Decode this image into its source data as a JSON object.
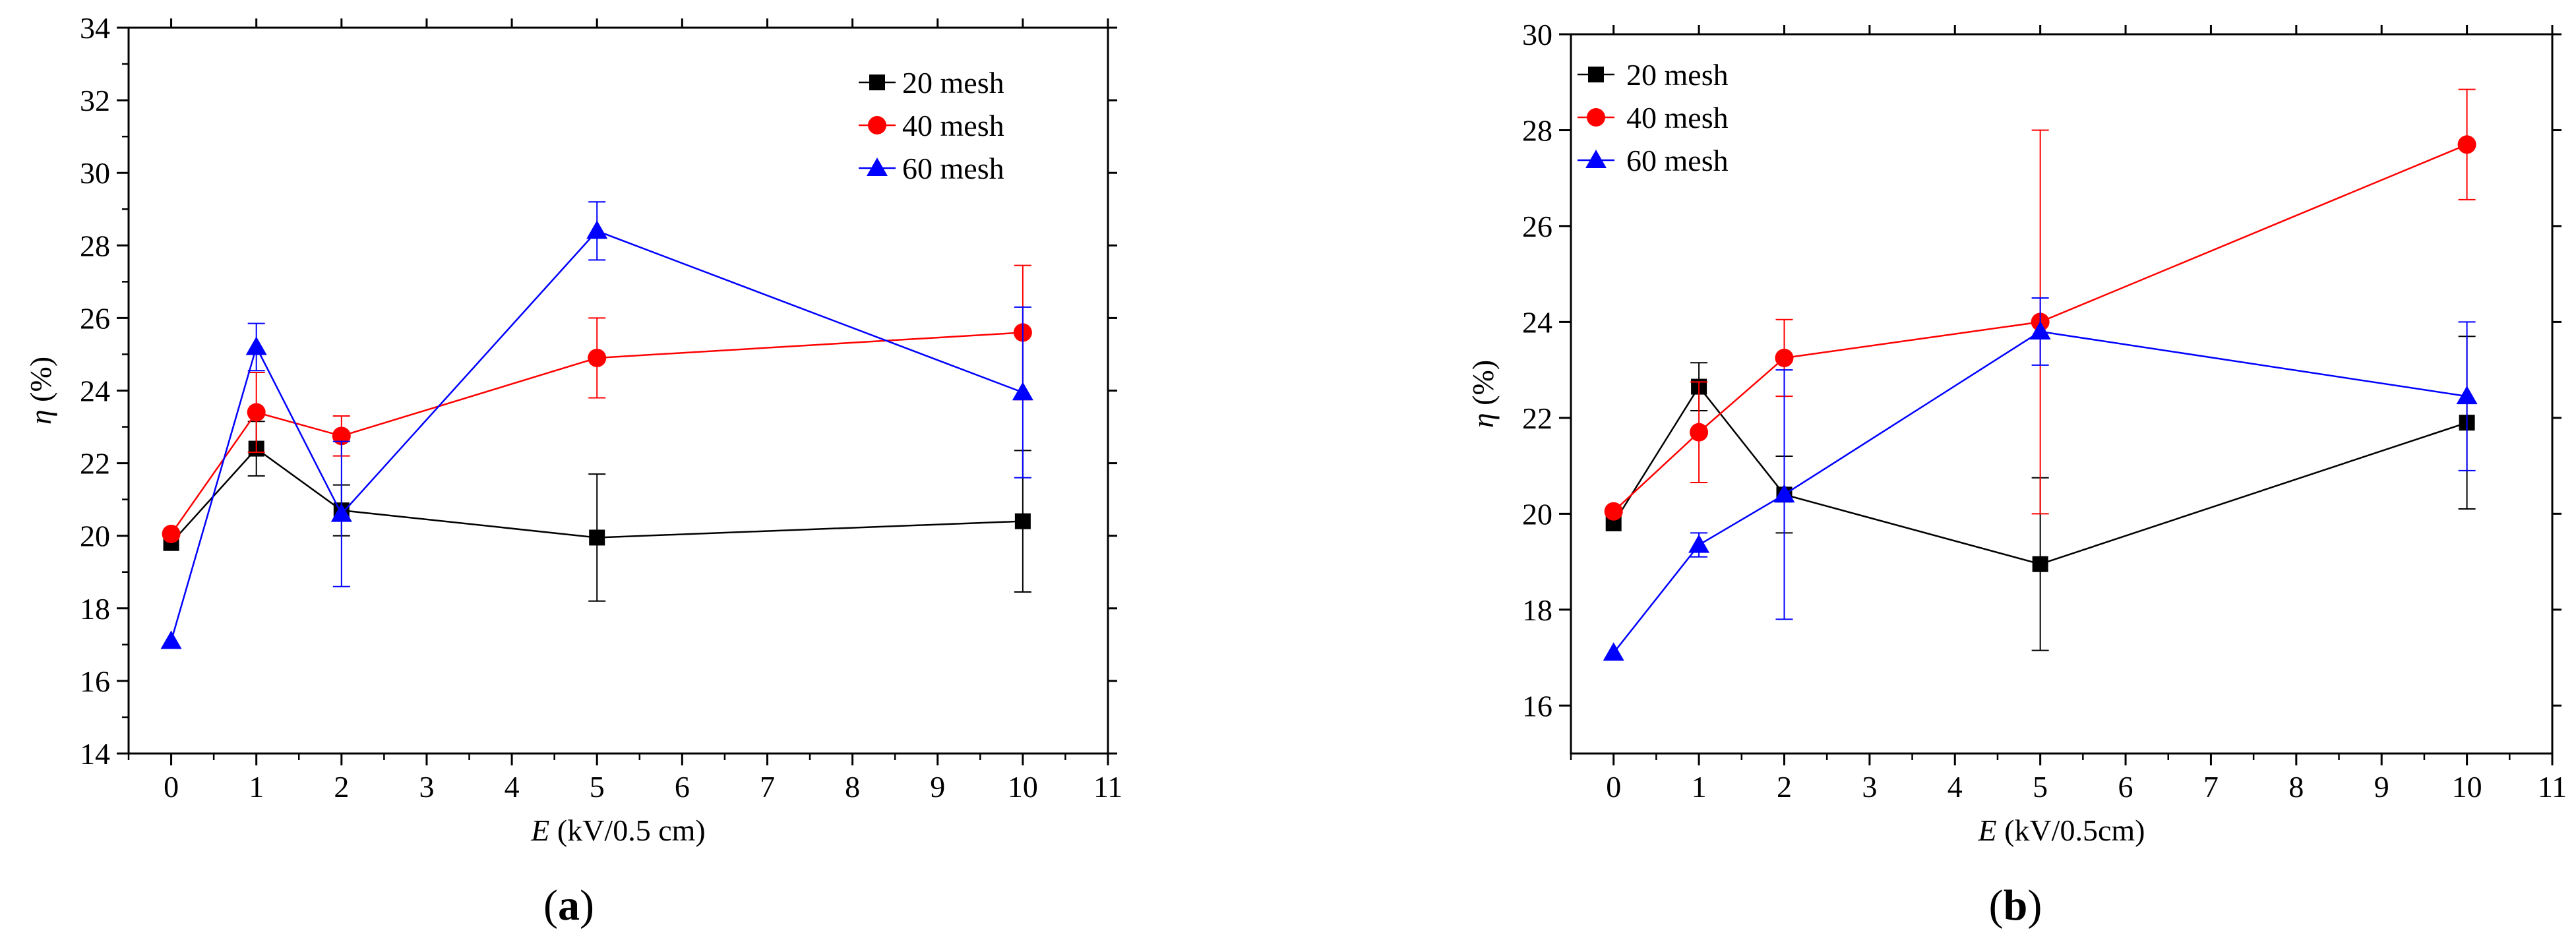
{
  "chart_data": [
    {
      "panel_label": "a",
      "type": "line",
      "xlabel_var": "E",
      "xlabel_unit": " (kV/0.5 cm)",
      "ylabel_var": "η",
      "ylabel_unit": " (%)",
      "xlim": [
        -0.5,
        11
      ],
      "ylim": [
        14,
        34
      ],
      "xticks": [
        0,
        1,
        2,
        3,
        4,
        5,
        6,
        7,
        8,
        9,
        10,
        11
      ],
      "yticks": [
        14,
        16,
        18,
        20,
        22,
        24,
        26,
        28,
        30,
        32,
        34
      ],
      "legend_position": "top-right",
      "x": [
        0,
        1,
        2,
        5,
        10
      ],
      "series": [
        {
          "name": "20 mesh",
          "color": "#000000",
          "marker": "square",
          "values": [
            19.8,
            22.4,
            20.7,
            19.95,
            20.4
          ],
          "errors": [
            0,
            0.75,
            0.7,
            1.75,
            1.95
          ]
        },
        {
          "name": "40 mesh",
          "color": "#ff0000",
          "marker": "circle",
          "values": [
            20.05,
            23.4,
            22.75,
            24.9,
            25.6
          ],
          "errors": [
            0,
            1.1,
            0.55,
            1.1,
            1.85
          ]
        },
        {
          "name": "60 mesh",
          "color": "#0000ff",
          "marker": "triangle",
          "values": [
            17.1,
            25.2,
            20.6,
            28.4,
            23.95
          ],
          "errors": [
            0,
            0.65,
            2.0,
            0.8,
            2.35
          ]
        }
      ]
    },
    {
      "panel_label": "b",
      "type": "line",
      "xlabel_var": "E",
      "xlabel_unit": " (kV/0.5cm)",
      "ylabel_var": "η",
      "ylabel_unit": " (%)",
      "xlim": [
        -0.5,
        11
      ],
      "ylim": [
        15,
        30
      ],
      "xticks": [
        0,
        1,
        2,
        3,
        4,
        5,
        6,
        7,
        8,
        9,
        10,
        11
      ],
      "yticks": [
        16,
        18,
        20,
        22,
        24,
        26,
        28,
        30
      ],
      "legend_position": "top-left",
      "x": [
        0,
        1,
        2,
        5,
        10
      ],
      "series": [
        {
          "name": "20 mesh",
          "color": "#000000",
          "marker": "square",
          "values": [
            19.8,
            22.65,
            20.4,
            18.95,
            21.9
          ],
          "errors": [
            0,
            0.5,
            0.8,
            1.8,
            1.8
          ]
        },
        {
          "name": "40 mesh",
          "color": "#ff0000",
          "marker": "circle",
          "values": [
            20.05,
            21.7,
            23.25,
            24.0,
            27.7
          ],
          "errors": [
            0,
            1.05,
            0.8,
            4.0,
            1.15
          ]
        },
        {
          "name": "60 mesh",
          "color": "#0000ff",
          "marker": "triangle",
          "values": [
            17.1,
            19.35,
            20.4,
            23.8,
            22.45
          ],
          "errors": [
            0,
            0.25,
            2.6,
            0.7,
            1.55
          ]
        }
      ]
    }
  ]
}
